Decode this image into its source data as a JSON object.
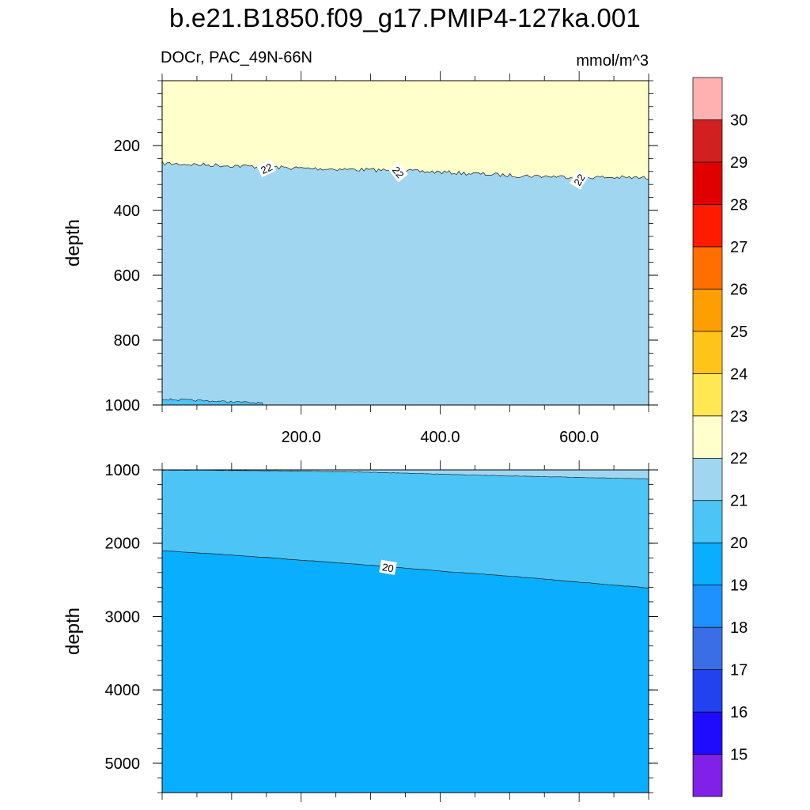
{
  "title": "b.e21.B1850.f09_g17.PMIP4-127ka.001",
  "subtitle": "DOCr, PAC_49N-66N",
  "units": "mmol/m^3",
  "colors": {
    "levels": [
      "#8020e8",
      "#1e0cff",
      "#2242f0",
      "#3a6ee6",
      "#1e90ff",
      "#0aaeff",
      "#4cc4f6",
      "#a0d6f0",
      "#ffffcc",
      "#ffe853",
      "#ffc419",
      "#ff9e00",
      "#ff6f00",
      "#ff1a00",
      "#e10000",
      "#d22020",
      "#ffb0b0"
    ],
    "line": "#1a1a1a"
  },
  "chart_data": {
    "type": "filled contour (depth section)",
    "colorbar": {
      "levels": [
        15,
        16,
        17,
        18,
        19,
        20,
        21,
        22,
        23,
        24,
        25,
        26,
        27,
        28,
        29,
        30
      ]
    },
    "panels": [
      {
        "name": "upper",
        "ylabel": "depth",
        "xlabel": "",
        "xlim": [
          0,
          700
        ],
        "ylim": [
          1000,
          0
        ],
        "xticks": [
          200.0,
          400.0,
          600.0
        ],
        "xtick_labels": [
          "200.0",
          "400.0",
          "600.0"
        ],
        "yticks": [
          200,
          400,
          600,
          800,
          1000
        ],
        "ytick_labels": [
          "200",
          "400",
          "600",
          "800",
          "1000"
        ],
        "contour_22_depth": {
          "x": [
            0,
            100,
            200,
            300,
            400,
            500,
            600,
            700
          ],
          "y": [
            255,
            262,
            270,
            275,
            282,
            292,
            297,
            300
          ]
        },
        "fill_above": 22.5,
        "fill_below": 21.5,
        "bottom_patch": {
          "level": 20.5,
          "x": [
            0,
            145
          ],
          "depth_top": 982
        },
        "contour_labels": [
          {
            "value": "22",
            "x": 150,
            "depth": 270,
            "rot": -25
          },
          {
            "value": "22",
            "x": 340,
            "depth": 282,
            "rot": 52
          },
          {
            "value": "22",
            "x": 600,
            "depth": 305,
            "rot": -58
          }
        ]
      },
      {
        "name": "lower",
        "ylabel": "depth",
        "xlabel": "",
        "xlim": [
          0,
          700
        ],
        "ylim": [
          5400,
          1000
        ],
        "yticks": [
          1000,
          2000,
          3000,
          4000,
          5000
        ],
        "ytick_labels": [
          "1000",
          "2000",
          "3000",
          "4000",
          "5000"
        ],
        "contour_21_depth": {
          "x": [
            0,
            100,
            200,
            300,
            400,
            500,
            600,
            700
          ],
          "y": [
            1000,
            1005,
            1015,
            1030,
            1055,
            1080,
            1100,
            1120
          ]
        },
        "contour_20_depth": {
          "x": [
            0,
            100,
            200,
            300,
            400,
            500,
            600,
            700
          ],
          "y": [
            2100,
            2160,
            2230,
            2300,
            2380,
            2450,
            2530,
            2610
          ]
        },
        "contour_labels": [
          {
            "value": "20",
            "x": 325,
            "depth": 2330,
            "rot": 10
          }
        ]
      }
    ]
  }
}
